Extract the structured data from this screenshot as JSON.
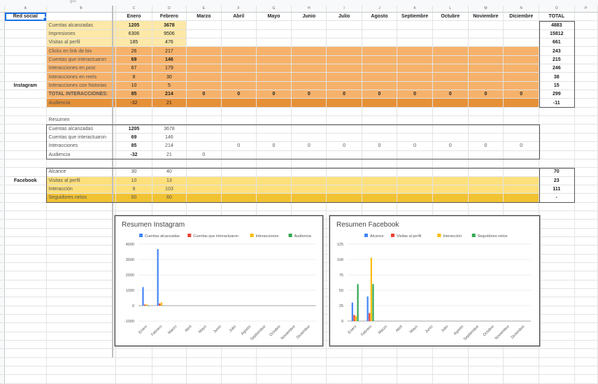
{
  "header_text": "gsc",
  "columns": [
    "A",
    "B",
    "C",
    "D",
    "E",
    "F",
    "G",
    "H",
    "I",
    "J",
    "K",
    "L",
    "M",
    "N",
    "O",
    "P"
  ],
  "row2": {
    "a": "Red social",
    "months": [
      "Enero",
      "Febrero",
      "Marzo",
      "Abril",
      "Mayo",
      "Junio",
      "Julio",
      "Agosto",
      "Septiembre",
      "Octubre",
      "Noviembre",
      "Diciembre"
    ],
    "total": "TOTAL"
  },
  "instagram": {
    "label": "Instagram",
    "rows": [
      {
        "name": "Cuentas alcanzadas",
        "v": [
          "1205",
          "3678",
          "",
          "",
          "",
          "",
          "",
          "",
          "",
          "",
          "",
          ""
        ],
        "total": "4883",
        "bold": true
      },
      {
        "name": "Impresiones",
        "v": [
          "6306",
          "9506",
          "",
          "",
          "",
          "",
          "",
          "",
          "",
          "",
          "",
          ""
        ],
        "total": "15812",
        "bold": false
      },
      {
        "name": "Visitas al perfil",
        "v": [
          "185",
          "476",
          "",
          "",
          "",
          "",
          "",
          "",
          "",
          "",
          "",
          ""
        ],
        "total": "661",
        "bold": false
      },
      {
        "name": "Clicks en link de bio",
        "v": [
          "26",
          "217",
          "",
          "",
          "",
          "",
          "",
          "",
          "",
          "",
          "",
          ""
        ],
        "total": "243",
        "bold": false
      },
      {
        "name": "Cuentas que interactuaron",
        "v": [
          "69",
          "146",
          "",
          "",
          "",
          "",
          "",
          "",
          "",
          "",
          "",
          ""
        ],
        "total": "215",
        "bold": true
      },
      {
        "name": "Interacciones en post",
        "v": [
          "67",
          "179",
          "",
          "",
          "",
          "",
          "",
          "",
          "",
          "",
          "",
          ""
        ],
        "total": "246",
        "bold": false
      },
      {
        "name": "Interacciones en reels",
        "v": [
          "8",
          "30",
          "",
          "",
          "",
          "",
          "",
          "",
          "",
          "",
          "",
          ""
        ],
        "total": "38",
        "bold": false
      },
      {
        "name": "Interacciones con historias",
        "v": [
          "10",
          "5",
          "",
          "",
          "",
          "",
          "",
          "",
          "",
          "",
          "",
          ""
        ],
        "total": "15",
        "bold": false
      },
      {
        "name": "TOTAL INTERACCIONES:",
        "v": [
          "85",
          "214",
          "0",
          "0",
          "0",
          "0",
          "0",
          "0",
          "0",
          "0",
          "0",
          "0"
        ],
        "total": "299",
        "bold": true
      },
      {
        "name": "Audiencia",
        "v": [
          "-32",
          "21",
          "",
          "",
          "",
          "",
          "",
          "",
          "",
          "",
          "",
          ""
        ],
        "total": "-11",
        "bold": false
      }
    ]
  },
  "resumen": {
    "title": "Resumen",
    "rows": [
      {
        "name": "Cuentas alcanzadas",
        "v": [
          "1205",
          "3678",
          "",
          "",
          "",
          "",
          "",
          "",
          "",
          "",
          "",
          ""
        ],
        "bold": true
      },
      {
        "name": "Cuentas que interactuaron",
        "v": [
          "69",
          "146",
          "",
          "",
          "",
          "",
          "",
          "",
          "",
          "",
          "",
          ""
        ],
        "bold": true
      },
      {
        "name": "Interacciones",
        "v": [
          "85",
          "214",
          "",
          "0",
          "0",
          "0",
          "0",
          "0",
          "0",
          "0",
          "0",
          "0"
        ],
        "bold": true
      },
      {
        "name": "Audiencia",
        "v": [
          "-32",
          "21",
          "0",
          "",
          "",
          "",
          "",
          "",
          "",
          "",
          "",
          ""
        ],
        "bold": true
      }
    ]
  },
  "facebook": {
    "label": "Facebook",
    "rows": [
      {
        "name": "Alcance",
        "v": [
          "30",
          "40",
          "",
          "",
          "",
          "",
          "",
          "",
          "",
          "",
          "",
          ""
        ],
        "total": "70"
      },
      {
        "name": "Visitas al perfil",
        "v": [
          "10",
          "13",
          "",
          "",
          "",
          "",
          "",
          "",
          "",
          "",
          "",
          ""
        ],
        "total": "23"
      },
      {
        "name": "Interacción",
        "v": [
          "8",
          "103",
          "",
          "",
          "",
          "",
          "",
          "",
          "",
          "",
          "",
          ""
        ],
        "total": "111"
      },
      {
        "name": "Seguidores netos",
        "v": [
          "60",
          "60",
          "",
          "",
          "",
          "",
          "",
          "",
          "",
          "",
          "",
          ""
        ],
        "total": "-"
      }
    ]
  },
  "colors": {
    "blue": "#4285f4",
    "red": "#ea4335",
    "yellow": "#fbbc04",
    "green": "#34a853"
  },
  "chart_data": [
    {
      "type": "bar",
      "title": "Resumen Instagram",
      "categories": [
        "Enero",
        "Febrero",
        "Marzo",
        "Abril",
        "Mayo",
        "Junio",
        "Julio",
        "Agosto",
        "Septiembre",
        "Octubre",
        "Noviembre",
        "Diciembre"
      ],
      "series": [
        {
          "name": "Cuentas alcanzadas",
          "color": "#4285f4",
          "values": [
            1205,
            3678,
            0,
            0,
            0,
            0,
            0,
            0,
            0,
            0,
            0,
            0
          ]
        },
        {
          "name": "Cuentas que interactuaron",
          "color": "#ea4335",
          "values": [
            69,
            146,
            0,
            0,
            0,
            0,
            0,
            0,
            0,
            0,
            0,
            0
          ]
        },
        {
          "name": "Interacciones",
          "color": "#fbbc04",
          "values": [
            85,
            214,
            0,
            0,
            0,
            0,
            0,
            0,
            0,
            0,
            0,
            0
          ]
        },
        {
          "name": "Audiencia",
          "color": "#34a853",
          "values": [
            -32,
            21,
            0,
            0,
            0,
            0,
            0,
            0,
            0,
            0,
            0,
            0
          ]
        }
      ],
      "yticks": [
        "4000",
        "3000",
        "2000",
        "1000",
        "0",
        "-1000"
      ],
      "ylim": [
        -1000,
        4000
      ],
      "legend": "top"
    },
    {
      "type": "bar",
      "title": "Resumen Facebook",
      "categories": [
        "Enero",
        "Febrero",
        "Marzo",
        "Abril",
        "Mayo",
        "Junio",
        "Julio",
        "Agosto",
        "Septiembre",
        "Octubre",
        "Noviembre",
        "Diciembre"
      ],
      "series": [
        {
          "name": "Alcance",
          "color": "#4285f4",
          "values": [
            30,
            40,
            0,
            0,
            0,
            0,
            0,
            0,
            0,
            0,
            0,
            0
          ]
        },
        {
          "name": "Visitas al perfil",
          "color": "#ea4335",
          "values": [
            10,
            13,
            0,
            0,
            0,
            0,
            0,
            0,
            0,
            0,
            0,
            0
          ]
        },
        {
          "name": "Interacción",
          "color": "#fbbc04",
          "values": [
            8,
            103,
            0,
            0,
            0,
            0,
            0,
            0,
            0,
            0,
            0,
            0
          ]
        },
        {
          "name": "Seguidores netos",
          "color": "#34a853",
          "values": [
            60,
            60,
            0,
            0,
            0,
            0,
            0,
            0,
            0,
            0,
            0,
            0
          ]
        }
      ],
      "yticks": [
        "125",
        "100",
        "75",
        "50",
        "25",
        "0"
      ],
      "ylim": [
        0,
        125
      ],
      "legend": "top"
    }
  ]
}
